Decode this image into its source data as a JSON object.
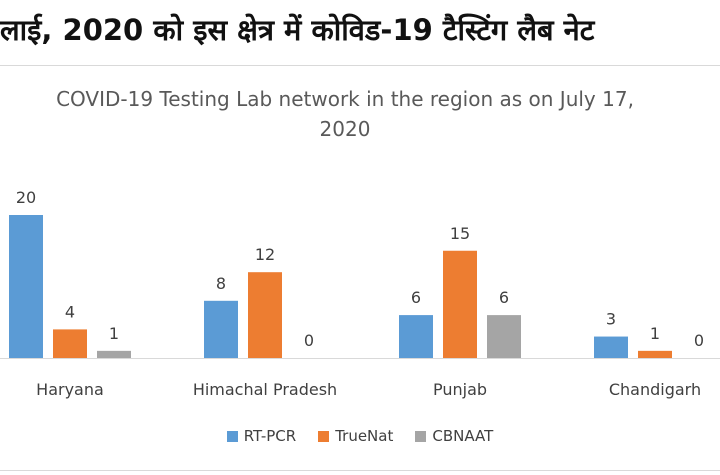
{
  "headline": "लाई, 2020 को इस क्षेत्र में कोविड-19 टैस्टिंग लैब नेट",
  "chart_data": {
    "type": "bar",
    "title": "COVID-19 Testing Lab network in the region as on July 17, 2020",
    "title_lines": [
      "COVID-19 Testing Lab network in the region as on July 17,",
      "2020"
    ],
    "categories": [
      "Haryana",
      "Himachal Pradesh",
      "Punjab",
      "Chandigarh"
    ],
    "series": [
      {
        "name": "RT-PCR",
        "color": "#5b9bd5",
        "values": [
          20,
          8,
          6,
          3
        ]
      },
      {
        "name": "TrueNat",
        "color": "#ed7d31",
        "values": [
          4,
          12,
          15,
          1
        ]
      },
      {
        "name": "CBNAAT",
        "color": "#a5a5a5",
        "values": [
          1,
          0,
          6,
          0
        ]
      }
    ],
    "ylim": [
      0,
      20
    ],
    "grid": false,
    "data_labels": true,
    "legend_position": "bottom"
  }
}
